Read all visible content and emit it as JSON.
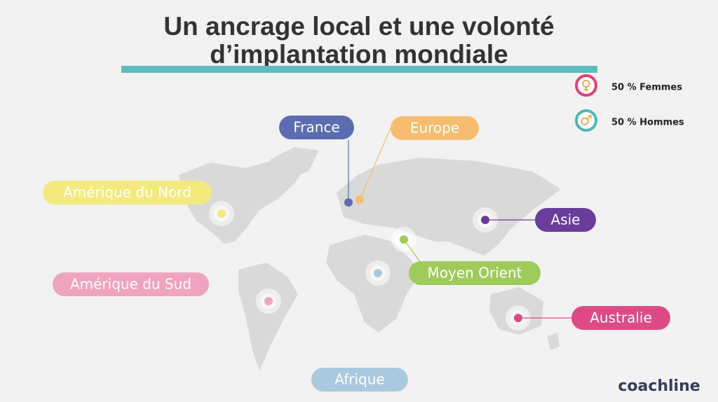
{
  "header": {
    "title_lines": [
      "Un ancrage local et une volonté",
      "d’implantation mondiale"
    ]
  },
  "legend": [
    {
      "symbol": "♀",
      "label": "50 %  Femmes",
      "color": "#e0407f"
    },
    {
      "symbol": "♂",
      "label": "50 %  Hommes",
      "color": "#4bb8b8"
    }
  ],
  "regions": [
    {
      "label": "France",
      "color": "#5b6db0"
    },
    {
      "label": "Europe",
      "color": "#f5bd6d"
    },
    {
      "label": "Amérique du Nord",
      "color": "#f3ea7d"
    },
    {
      "label": "Asie",
      "color": "#6a3c9c"
    },
    {
      "label": "Moyen Orient",
      "color": "#9ecb5a"
    },
    {
      "label": "Amérique du Sud",
      "color": "#f0a3bf"
    },
    {
      "label": "Australie",
      "color": "#dd4a86"
    },
    {
      "label": "Afrique",
      "color": "#a9c9df"
    }
  ],
  "logo": "coachline"
}
